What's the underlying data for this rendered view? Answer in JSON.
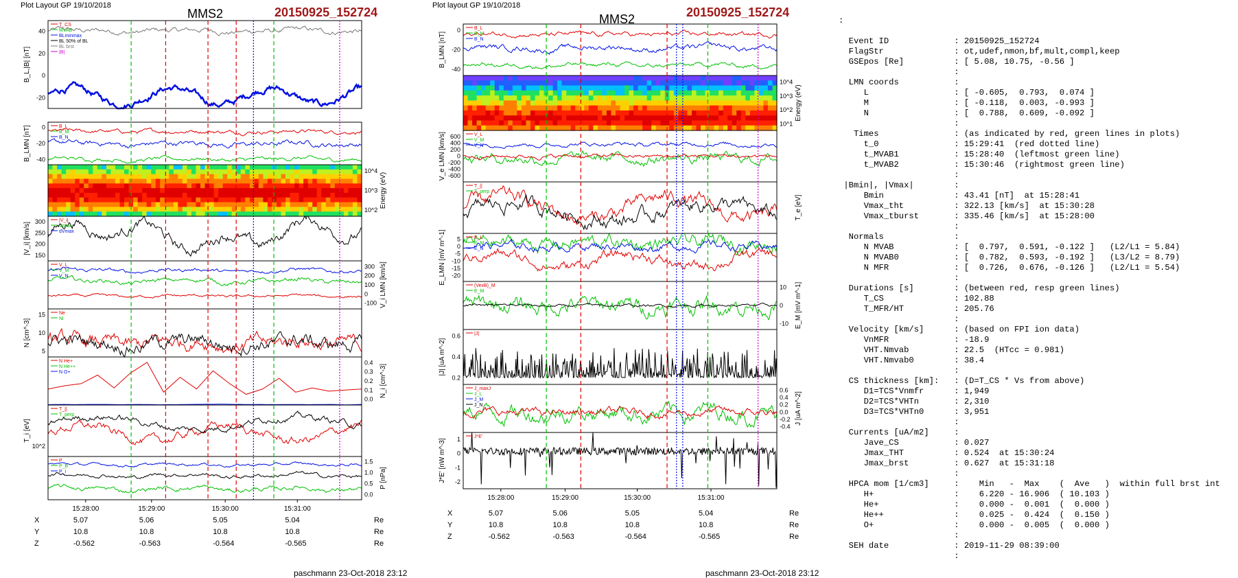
{
  "header": {
    "left_plot_layout": "Plot Layout GP 19/10/2018",
    "right_plot_layout": "Plot layout GP 19/10/2018",
    "spacecraft": "MMS2",
    "event_label": "20150925_152724"
  },
  "footer": "paschmann 23-Oct-2018 23:12",
  "colors": {
    "event_red": "#a01818",
    "red": "#e00000",
    "blue": "#0010e0",
    "green": "#00c000",
    "black": "#000000",
    "gray": "#777777",
    "magenta": "#d000d0",
    "cyan": "#00a0e0"
  },
  "time_axis": {
    "ticks": [
      "15:28:00",
      "15:29:00",
      "15:30:00",
      "15:31:00"
    ],
    "coords": [
      {
        "name": "X",
        "values": [
          "5.07",
          "5.06",
          "5.05",
          "5.04"
        ],
        "unit": "Re"
      },
      {
        "name": "Y",
        "values": [
          "10.8",
          "10.8",
          "10.8",
          "10.8"
        ],
        "unit": "Re"
      },
      {
        "name": "Z",
        "values": [
          "-0.562",
          "-0.563",
          "-0.564",
          "-0.565"
        ],
        "unit": "Re"
      }
    ]
  },
  "chart_data": [
    {
      "type": "line",
      "panel": "left",
      "x": [
        "15:28:00",
        "15:29:00",
        "15:30:00",
        "15:31:00"
      ],
      "times": {
        "t_MVAB1": "15:28:40",
        "t_0": "15:29:41",
        "t_MVAB2": "15:30:46"
      },
      "subplots": [
        {
          "ylabel": "B_L,|B| [nT]",
          "ticks": [
            "40",
            "20",
            "0",
            "-20"
          ],
          "legend": [
            "T_CS",
            "MVAB",
            "BLminmax",
            "BL 50% of BL",
            "BL brst",
            "|B|"
          ]
        },
        {
          "ylabel": "B_LMN [nT]",
          "ticks": [
            "0",
            "-20",
            "-40"
          ],
          "legend": [
            "B_L",
            "B_M",
            "B_N"
          ]
        },
        {
          "ylabel": "Energy (eV)",
          "ticks": [
            "10^4",
            "10^3",
            "10^2"
          ],
          "type": "heatmap"
        },
        {
          "ylabel": "|V_i| [km/s]",
          "ticks": [
            "300",
            "250",
            "200",
            "150"
          ],
          "legend": [
            "|V_i|",
            "Vmax",
            "dVmax"
          ]
        },
        {
          "ylabel": "V_i LMN [km/s]",
          "ticks": [
            "300",
            "200",
            "100",
            "0",
            "-100"
          ],
          "legend": [
            "V_L",
            "V_M",
            "V_N"
          ]
        },
        {
          "ylabel": "N [cm^-3]",
          "ticks": [
            "15",
            "10",
            "5"
          ],
          "legend": [
            "Ne",
            "Ni"
          ]
        },
        {
          "ylabel": "N_i [cm^-3]",
          "ticks": [
            "0.4",
            "0.3",
            "0.2",
            "0.1",
            "0.0"
          ],
          "legend": [
            "N He+",
            "N He++",
            "N O+"
          ]
        },
        {
          "ylabel": "T_i [eV]",
          "ticks": [
            "10^2"
          ],
          "legend": [
            "T_||",
            "T_perp"
          ]
        },
        {
          "ylabel": "P [nPa]",
          "ticks": [
            "1.5",
            "1.0",
            "0.5",
            "0.0"
          ],
          "legend": [
            "P",
            "P_B",
            "P_i"
          ]
        }
      ]
    },
    {
      "type": "line",
      "panel": "right",
      "x": [
        "15:28:00",
        "15:29:00",
        "15:30:00",
        "15:31:00"
      ],
      "subplots": [
        {
          "ylabel": "B_LMN [nT]",
          "ticks": [
            "0",
            "-20",
            "-40"
          ],
          "legend": [
            "B_L",
            "B_M",
            "B_N"
          ]
        },
        {
          "ylabel": "Energy (eV)",
          "ticks": [
            "10^4",
            "10^3",
            "10^2",
            "10^1"
          ],
          "type": "heatmap"
        },
        {
          "ylabel": "V_e LMN [km/s]",
          "ticks": [
            "600",
            "400",
            "200",
            "0",
            "-200",
            "-400",
            "-600"
          ],
          "legend": [
            "V_L",
            "V_M",
            "V_N"
          ]
        },
        {
          "ylabel": "T_e [eV]",
          "ticks": [],
          "legend": [
            "T_||",
            "T_perp"
          ]
        },
        {
          "ylabel": "E_LMN [mV m^-1]",
          "ticks": [
            "5",
            "0",
            "-5",
            "-10",
            "-15",
            "-20"
          ],
          "legend": [
            "E_L",
            "E_M",
            "E_N"
          ]
        },
        {
          "ylabel": "E_M [mV m^-1]",
          "ticks": [
            "10",
            "0",
            "-10"
          ],
          "legend": [
            "(VexB)_M",
            "E_M"
          ]
        },
        {
          "ylabel": "|J| [uA m^-2]",
          "ticks": [
            "0.6",
            "0.4",
            "0.2"
          ],
          "legend": [
            "|J|"
          ]
        },
        {
          "ylabel": "J [uA m^-2]",
          "ticks": [
            "0.6",
            "0.4",
            "0.2",
            "0.0",
            "-0.2",
            "-0.4"
          ],
          "legend": [
            "J_maxJ",
            "J_L",
            "J_M",
            "J_N"
          ]
        },
        {
          "ylabel": "J*E' [nW m^-3]",
          "ticks": [
            "1",
            "0",
            "-1",
            "-2"
          ],
          "legend": [
            "J*E'"
          ]
        }
      ]
    }
  ],
  "info": {
    "leading": ":",
    "lines": [
      "  Event ID             : 20150925_152724",
      "  FlagStr              : ot,udef,nmon,bf,mult,compl,keep",
      "  GSEpos [Re]          : [ 5.08, 10.75, -0.56 ]",
      "                       :",
      "  LMN coords           :",
      "     L                 : [ -0.605,  0.793,  0.074 ]",
      "     M                 : [ -0.118,  0.003, -0.993 ]",
      "     N                 : [  0.788,  0.609, -0.092 ]",
      "                       :",
      "   Times               : (as indicated by red, green lines in plots)",
      "     t_0               : 15:29:41  (red dotted line)",
      "     t_MVAB1           : 15:28:40  (leftmost green line)",
      "     t_MVAB2           : 15:30:46  (rightmost green line)",
      "                       :",
      " |Bmin|, |Vmax|        :",
      "     Bmin              : 43.41 [nT]  at 15:28:41",
      "     Vmax_tht          : 322.13 [km/s]  at 15:30:28",
      "     Vmax_tburst       : 335.46 [km/s]  at 15:28:00",
      "                       :",
      "  Normals              :",
      "     N MVAB            : [  0.797,  0.591, -0.122 ]   (L2/L1 = 5.84)",
      "     N MVAB0           : [  0.782,  0.593, -0.192 ]   (L3/L2 = 8.79)",
      "     N MFR             : [  0.726,  0.676, -0.126 ]   (L2/L1 = 5.54)",
      "                       :",
      "  Durations [s]        : (between red, resp green lines)",
      "     T_CS              : 102.88",
      "     T_MFR/HT          : 205.76",
      "                       :",
      "  Velocity [km/s]      : (based on FPI ion data)",
      "     VnMFR             : -18.9",
      "     VHT.Nmvab         : 22.5  (HTcc = 0.981)",
      "     VHT.Nmvab0        : 38.4",
      "                       :",
      "  CS thickness [km]:   : (D=T_CS * Vs from above)",
      "     D1=TCS*Vnmfr      : 1,949",
      "     D2=TCS*VHTn       : 2,310",
      "     D3=TCS*VHTn0      : 3,951",
      "                       :",
      "  Currents [uA/m2]     :",
      "     Jave_CS           : 0.027",
      "     Jmax_THT          : 0.524  at 15:30:24",
      "     Jmax_brst         : 0.627  at 15:31:18",
      "                       :",
      "  HPCA mom [1/cm3]     :    Min   -  Max    (  Ave   )  within full brst int",
      "     H+                :    6.220 - 16.906  ( 10.103 )",
      "     He+               :    0.000 -  0.001  (  0.000 )",
      "     He++              :    0.025 -  0.424  (  0.150 )",
      "     O+                :    0.000 -  0.005  (  0.000 )",
      "                       :",
      "  SEH date             : 2019-11-29 08:39:00",
      "                       :"
    ]
  }
}
